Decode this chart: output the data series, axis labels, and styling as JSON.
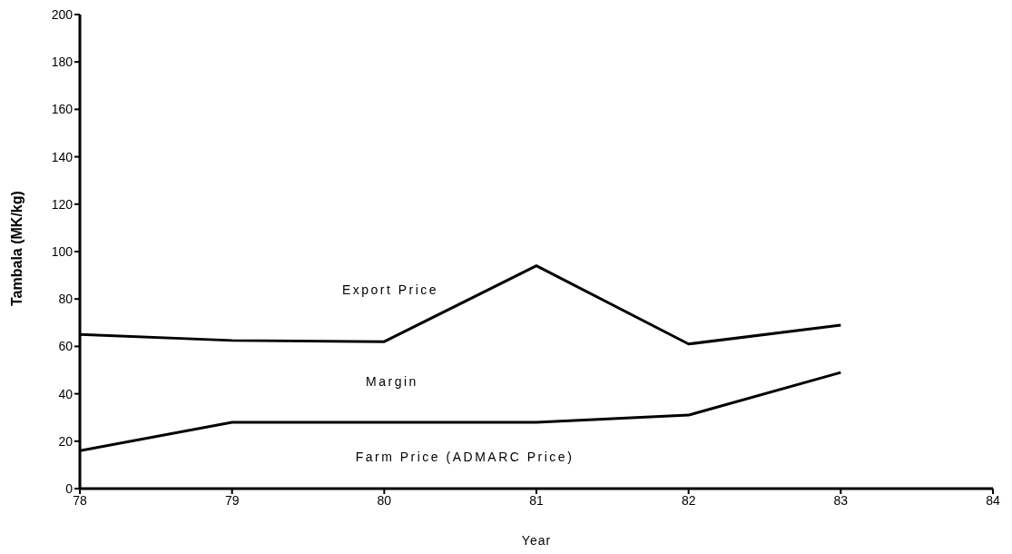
{
  "chart_data": {
    "type": "line",
    "xlabel": "Year",
    "ylabel": "Tambala (MK/kg)",
    "x": [
      78,
      79,
      80,
      81,
      82,
      83
    ],
    "series": [
      {
        "color": "#000000",
        "values": [
          65,
          62.5,
          62,
          94,
          61,
          69
        ]
      },
      {
        "color": "#000000",
        "values": [
          16,
          28,
          28,
          28,
          31,
          49
        ]
      }
    ],
    "xlim": [
      78,
      84
    ],
    "xticks": [
      78,
      79,
      80,
      81,
      82,
      83,
      84
    ],
    "ylim": [
      0,
      200
    ],
    "yticks": [
      0,
      20,
      40,
      60,
      80,
      100,
      120,
      140,
      160,
      180,
      200
    ],
    "grid": false,
    "legend": false,
    "marker": "none",
    "line_style": "solid",
    "annotations": [
      "Export Price",
      "Margin",
      "Farm Price (ADMARC Price)"
    ]
  }
}
